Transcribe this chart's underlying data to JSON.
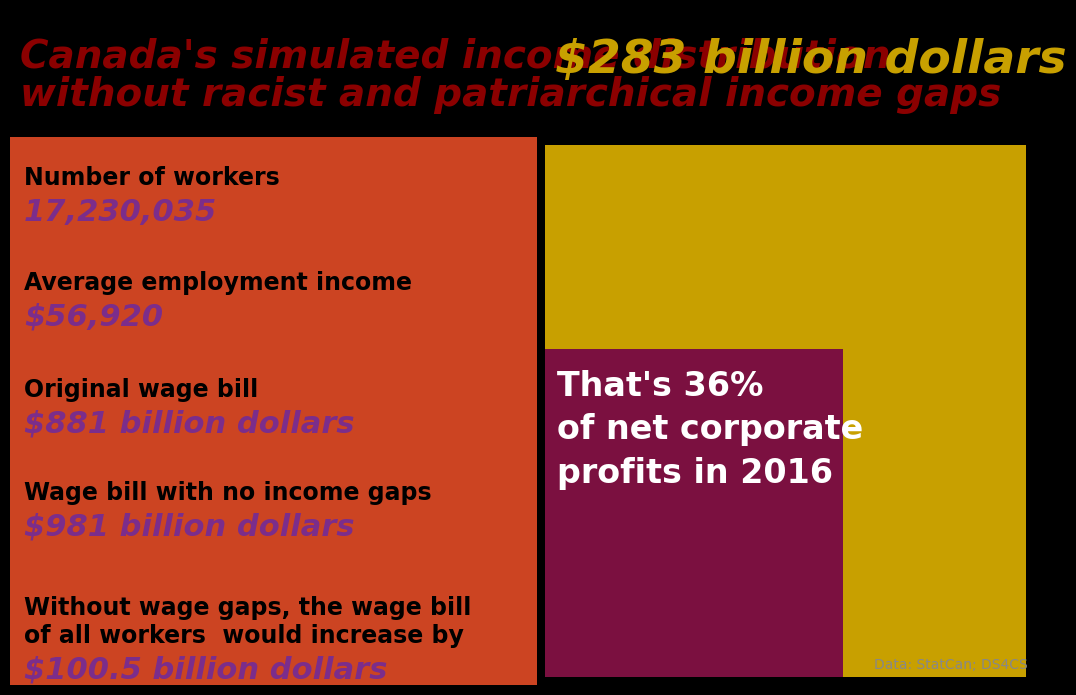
{
  "title_line1": "Canada's simulated income distribution",
  "title_line2": "without racist and patriarchical income gaps",
  "title_color": "#8B0000",
  "title_fontsize": 28,
  "bg_color": "#000000",
  "left_panel_color": "#CC4422",
  "stats": [
    {
      "label": "Number of workers",
      "value": "17,230,035"
    },
    {
      "label": "Average employment income",
      "value": "$56,920"
    },
    {
      "label": "Original wage bill",
      "value": "$881 billion dollars"
    },
    {
      "label": "Wage bill with no income gaps",
      "value": "$981 billion dollars"
    },
    {
      "label": "Without wage gaps, the wage bill\nof all workers  would increase by",
      "value": "$100.5 billion dollars"
    }
  ],
  "stat_label_color": "#000000",
  "stat_value_color": "#7B2D8B",
  "stat_label_fontsize": 17,
  "stat_value_fontsize": 22,
  "gold_rect_color": "#C8A000",
  "maroon_rect_color": "#7B1040",
  "corporate_text_line1": "That's 36%",
  "corporate_text_line2": "of net corporate",
  "corporate_text_line3": "profits in 2016",
  "corporate_text_color": "#FFFFFF",
  "corporate_text_fontsize": 24,
  "big_number_text": "$283 billion dollars",
  "big_number_color": "#C8A000",
  "big_number_fontsize": 34,
  "source_text": "Data: StatCan; DS4CS",
  "source_fontsize": 10
}
